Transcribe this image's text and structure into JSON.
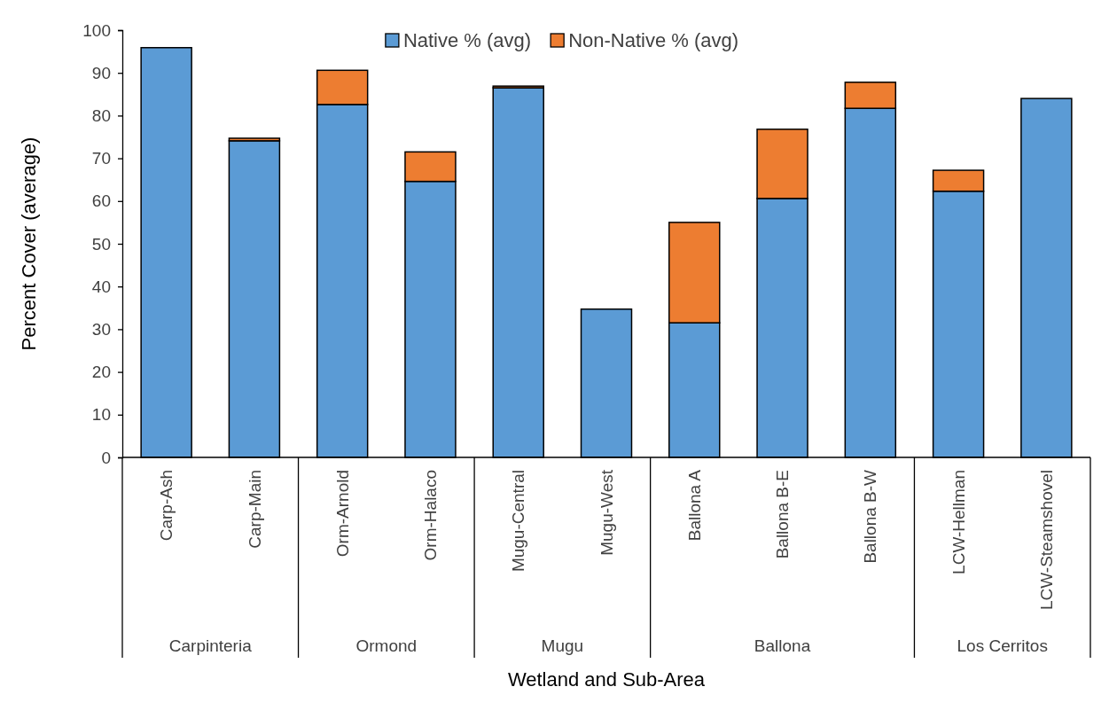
{
  "chart_data": {
    "type": "bar",
    "stacked": true,
    "xlabel": "Wetland and Sub-Area",
    "ylabel": "Percent Cover (average)",
    "categories": [
      "Carp-Ash",
      "Carp-Main",
      "Orm-Arnold",
      "Orm-Halaco",
      "Mugu-Central",
      "Mugu-West",
      "Ballona A",
      "Ballona B-E",
      "Ballona B-W",
      "LCW-Hellman",
      "LCW-Steamshovel"
    ],
    "series": [
      {
        "name": "Native % (avg)",
        "color": "#5b9bd5",
        "values": [
          95.9,
          74.1,
          82.6,
          64.6,
          86.5,
          34.7,
          31.5,
          60.6,
          81.7,
          62.3,
          84.0
        ]
      },
      {
        "name": "Non-Native % (avg)",
        "color": "#ed7d31",
        "values": [
          0,
          0.6,
          8.0,
          6.9,
          0.4,
          0,
          23.5,
          16.2,
          6.1,
          4.9,
          0
        ]
      }
    ],
    "ylim": [
      0,
      100
    ],
    "yticks": [
      0,
      10,
      20,
      30,
      40,
      50,
      60,
      70,
      80,
      90,
      100
    ],
    "legend": "top",
    "annotations": [
      "Carpinteria",
      "Ormond",
      "Mugu",
      "Ballona",
      "Los Cerritos"
    ]
  }
}
